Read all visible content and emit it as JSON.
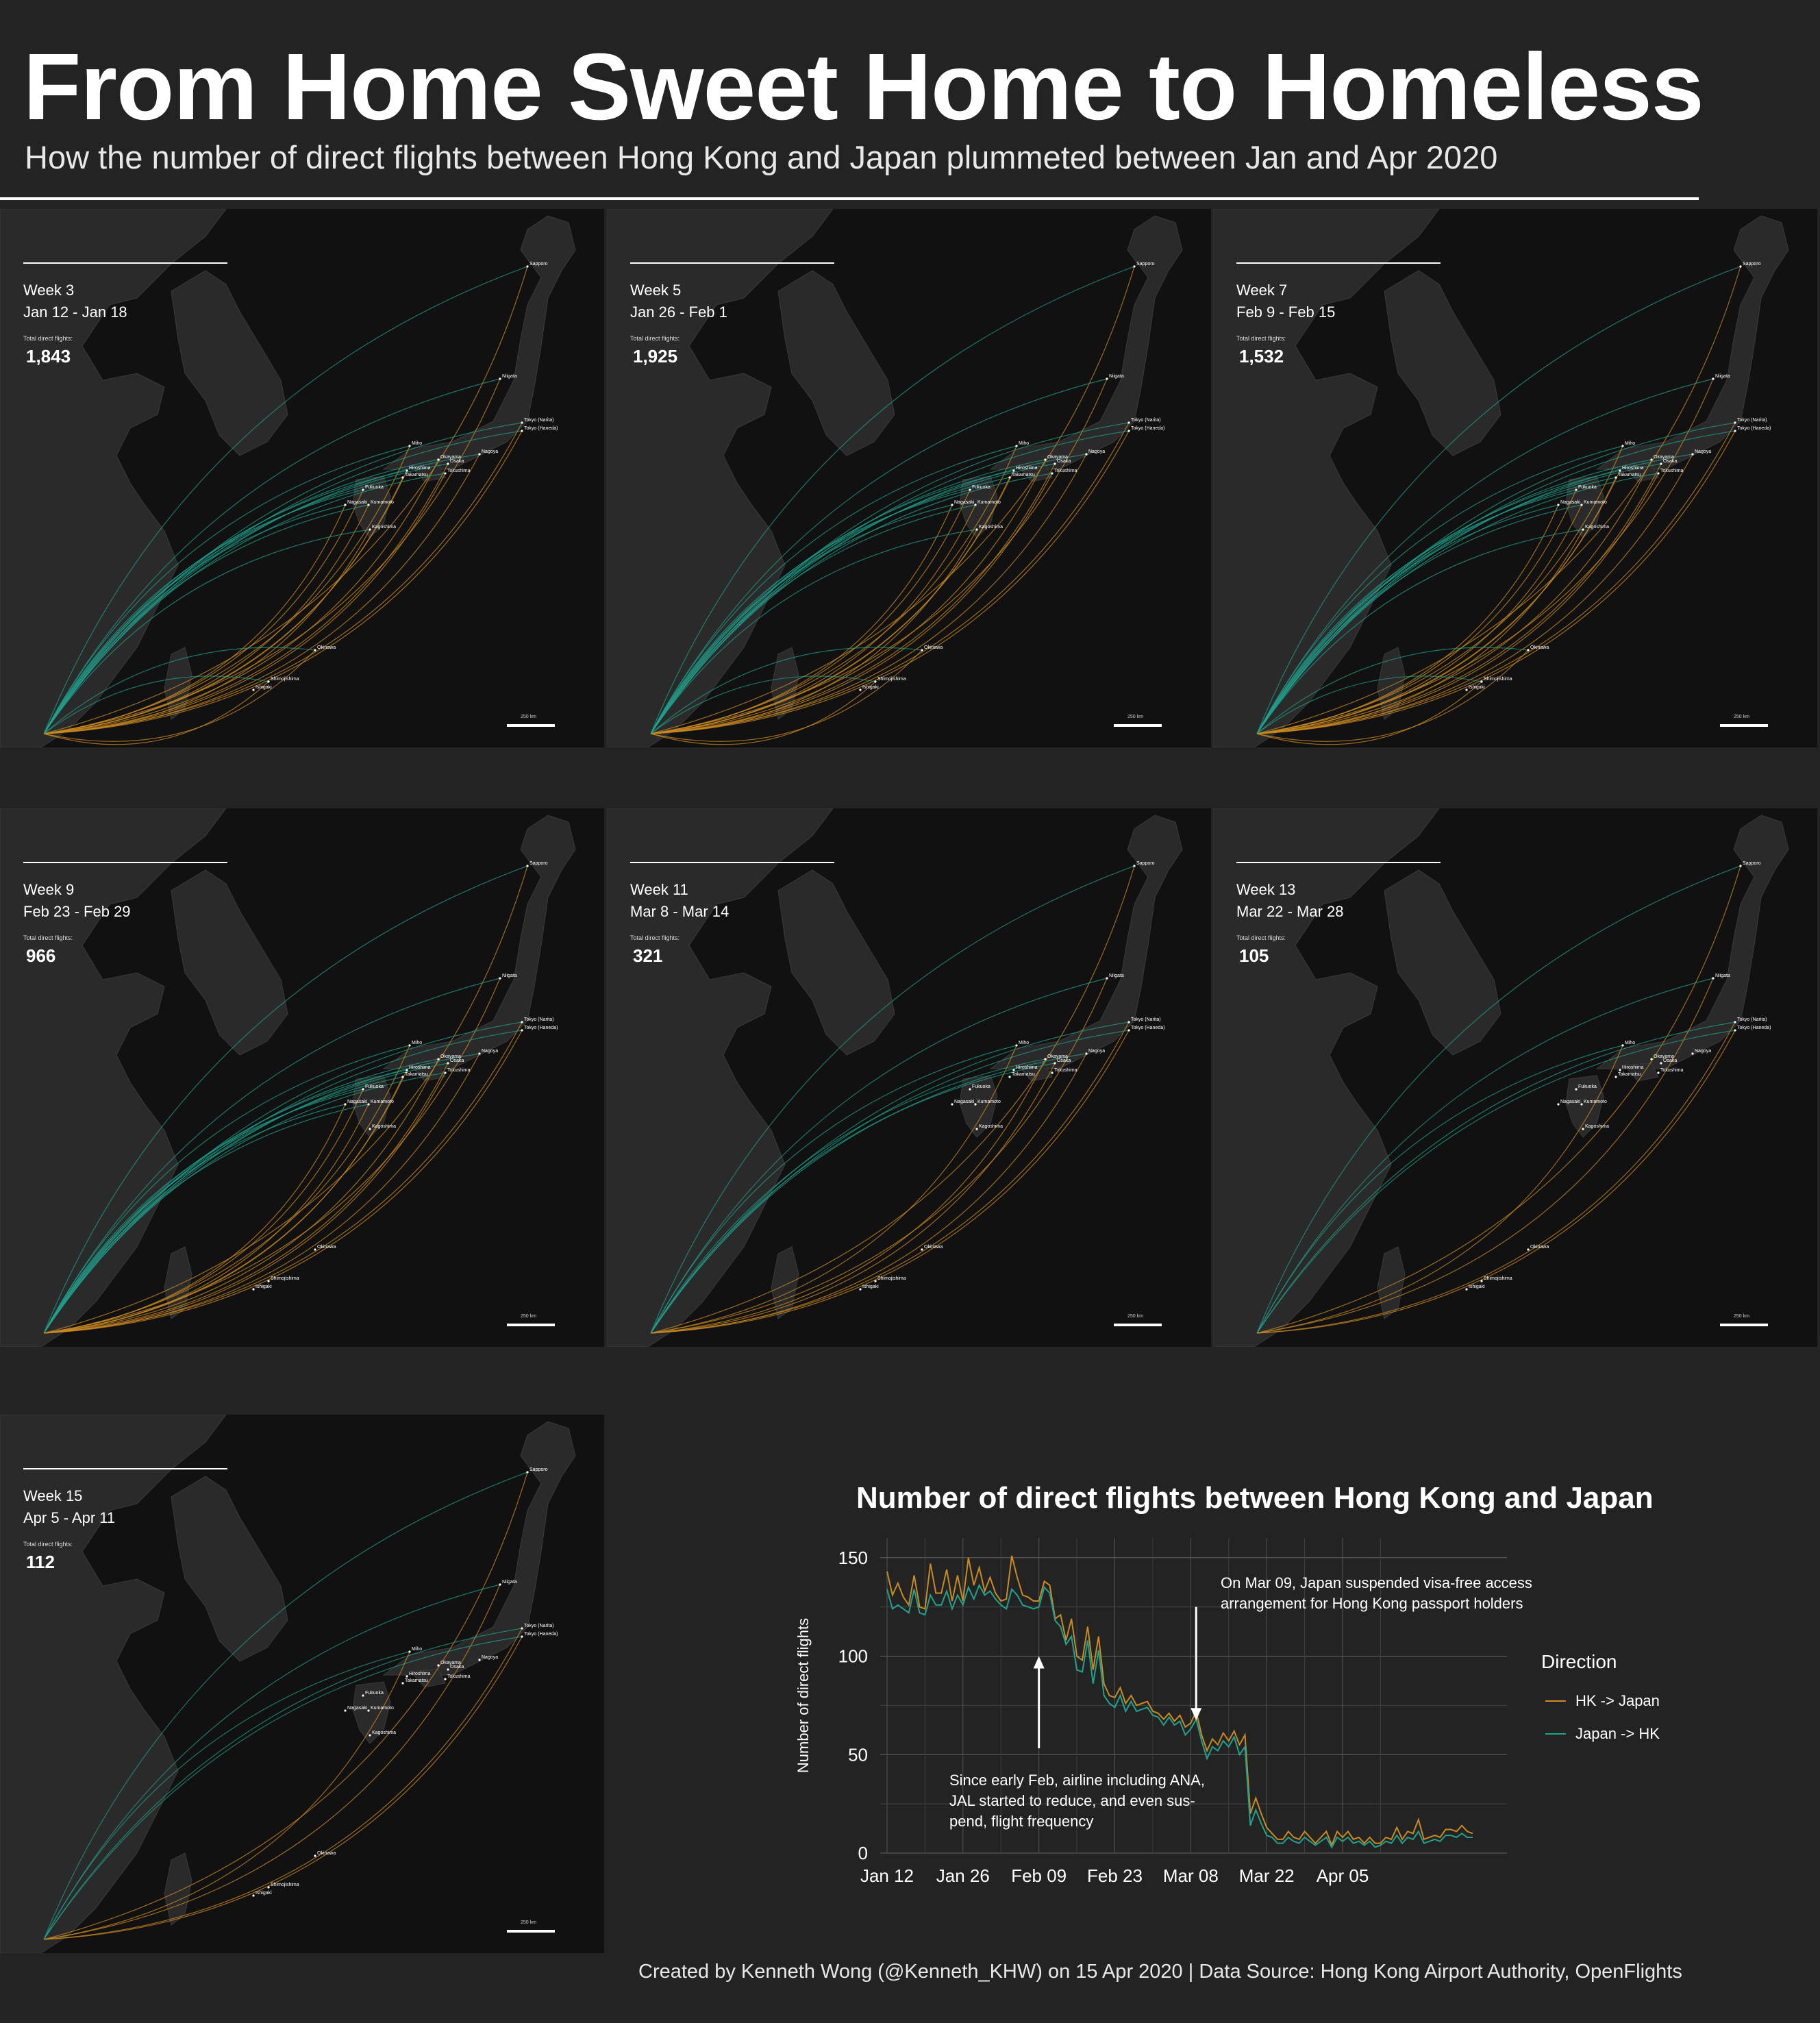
{
  "header": {
    "title": "From Home Sweet Home to Homeless",
    "subtitle": "How the number of direct flights between Hong Kong and Japan plummeted between Jan and Apr 2020"
  },
  "colors": {
    "background": "#232323",
    "map_land": "#2a2a2a",
    "map_sea": "#111111",
    "hk_to_japan": "#c98a22",
    "japan_to_hk": "#1fa38f"
  },
  "map_common": {
    "total_label": "Total direct flights:",
    "scale_label": "250 km",
    "cities": [
      "Sapporo",
      "Niigata",
      "Tokyo (Narita)",
      "Tokyo (Haneda)",
      "Miho",
      "Okayama",
      "Osaka",
      "Nagoya",
      "Hiroshima",
      "Tokushima",
      "Takamatsu",
      "Fukuoka",
      "Nagasaki",
      "Kumamoto",
      "Kagoshima",
      "Okinawa",
      "Shimojishima",
      "Ishigaki"
    ]
  },
  "maps": [
    {
      "week": "Week 3",
      "dates": "Jan 12 - Jan 18",
      "total": "1,843"
    },
    {
      "week": "Week 5",
      "dates": "Jan 26 - Feb 1",
      "total": "1,925"
    },
    {
      "week": "Week 7",
      "dates": "Feb 9 - Feb 15",
      "total": "1,532"
    },
    {
      "week": "Week 9",
      "dates": "Feb 23 - Feb 29",
      "total": "966"
    },
    {
      "week": "Week 11",
      "dates": "Mar 8 - Mar 14",
      "total": "321"
    },
    {
      "week": "Week 13",
      "dates": "Mar 22 - Mar 28",
      "total": "105"
    },
    {
      "week": "Week 15",
      "dates": "Apr 5 - Apr 11",
      "total": "112"
    }
  ],
  "chart_data": {
    "type": "line",
    "title": "Number of direct flights between Hong Kong and Japan",
    "xlabel": "",
    "ylabel": "Number of direct flights",
    "ylim": [
      0,
      160
    ],
    "yticks": [
      0,
      50,
      100,
      150
    ],
    "xticks": [
      "Jan 12",
      "Jan 26",
      "Feb 09",
      "Feb 23",
      "Mar 08",
      "Mar 22",
      "Apr 05"
    ],
    "x_start": "Jan 12",
    "grid": true,
    "legend_title": "Direction",
    "legend_position": "right",
    "series": [
      {
        "name": "HK -> Japan",
        "color": "#c98a22",
        "values": [
          143,
          131,
          137,
          130,
          126,
          141,
          125,
          124,
          147,
          132,
          132,
          144,
          128,
          141,
          128,
          150,
          136,
          145,
          133,
          140,
          132,
          128,
          129,
          151,
          140,
          131,
          130,
          128,
          128,
          138,
          136,
          119,
          121,
          108,
          119,
          100,
          98,
          115,
          93,
          110,
          86,
          80,
          79,
          84,
          76,
          80,
          75,
          76,
          77,
          72,
          71,
          68,
          71,
          67,
          70,
          64,
          66,
          72,
          60,
          52,
          58,
          55,
          61,
          57,
          62,
          55,
          60,
          20,
          28,
          20,
          13,
          10,
          7,
          7,
          11,
          8,
          7,
          11,
          8,
          5,
          8,
          11,
          4,
          11,
          8,
          11,
          7,
          8,
          5,
          8,
          5,
          5,
          8,
          7,
          13,
          7,
          11,
          10,
          17,
          7,
          8,
          9,
          8,
          12,
          12,
          11,
          14,
          11,
          10
        ]
      },
      {
        "name": "Japan -> HK",
        "color": "#1fa38f",
        "values": [
          134,
          124,
          126,
          124,
          122,
          134,
          122,
          121,
          131,
          126,
          126,
          133,
          124,
          131,
          126,
          135,
          129,
          136,
          131,
          133,
          129,
          126,
          124,
          134,
          131,
          126,
          125,
          124,
          125,
          135,
          132,
          118,
          115,
          106,
          110,
          93,
          92,
          108,
          86,
          103,
          80,
          76,
          74,
          80,
          72,
          77,
          72,
          73,
          74,
          70,
          69,
          65,
          69,
          65,
          67,
          60,
          63,
          68,
          57,
          48,
          54,
          52,
          57,
          54,
          59,
          50,
          54,
          14,
          22,
          15,
          9,
          8,
          5,
          5,
          8,
          6,
          5,
          8,
          6,
          4,
          6,
          8,
          3,
          8,
          6,
          8,
          5,
          6,
          4,
          6,
          3,
          4,
          6,
          5,
          9,
          5,
          8,
          7,
          11,
          5,
          6,
          7,
          6,
          9,
          9,
          8,
          10,
          8,
          8
        ]
      }
    ],
    "annotations": [
      {
        "text": "Since early Feb, airline including ANA, JAL started to reduce, and even sus- pend, flight frequency",
        "x": "Feb 09"
      },
      {
        "text": "On Mar 09, Japan suspended visa-free access arrangement for Hong Kong passport holders",
        "x": "Mar 09"
      }
    ]
  },
  "footer": {
    "credit": "Created by Kenneth Wong (@Kenneth_KHW) on 15 Apr 2020 | Data Source: Hong Kong Airport Authority, OpenFlights"
  }
}
